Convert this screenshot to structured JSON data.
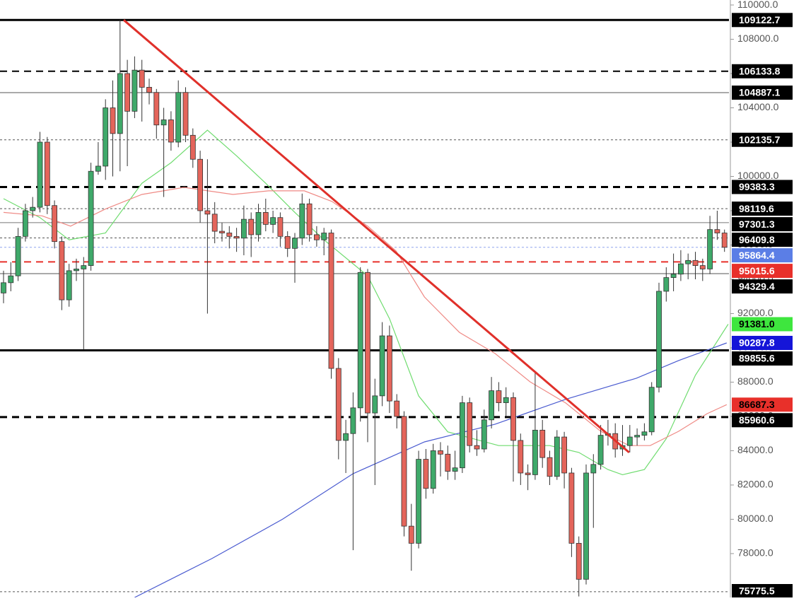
{
  "chart_data": {
    "type": "candlestick",
    "ylim": [
      75440,
      110290
    ],
    "yticks": [
      {
        "value": 78000,
        "label": "78000.0"
      },
      {
        "value": 80000,
        "label": "80000.0"
      },
      {
        "value": 82000,
        "label": "82000.0"
      },
      {
        "value": 84000,
        "label": "84000.0"
      },
      {
        "value": 86000,
        "label": "86000.0"
      },
      {
        "value": 88000,
        "label": "88000.0"
      },
      {
        "value": 90000,
        "label": "90000.0"
      },
      {
        "value": 92000,
        "label": "92000.0"
      },
      {
        "value": 94000,
        "label": "94000.0"
      },
      {
        "value": 96000,
        "label": "96000.0"
      },
      {
        "value": 98000,
        "label": "98000.0"
      },
      {
        "value": 100000,
        "label": "100000.0"
      },
      {
        "value": 102000,
        "label": "102000.0"
      },
      {
        "value": 104000,
        "label": "104000.0"
      },
      {
        "value": 106000,
        "label": "106000.0"
      },
      {
        "value": 108000,
        "label": "108000.0"
      },
      {
        "value": 110000,
        "label": "110000.0"
      }
    ],
    "up_color": "#3fa96a",
    "down_color": "#e4655b",
    "open": [
      93200,
      93800,
      94200,
      96500,
      98000,
      98200,
      102000,
      98300,
      96200,
      92800,
      94500,
      94600,
      94800,
      100300,
      100600,
      104000,
      102500,
      106000,
      103800,
      106200,
      105200,
      104900,
      103000,
      103300,
      102000,
      104900,
      102400,
      101000,
      98000,
      97800,
      96800,
      96700,
      96500,
      96400,
      97500,
      96600,
      97900,
      97200,
      97600,
      96500,
      95800,
      96400,
      98400,
      96600,
      96300,
      96700,
      88800,
      84600,
      85000,
      86500,
      94400,
      86200,
      87200,
      90700,
      86900,
      86000,
      79600,
      78600,
      83500,
      81800,
      84000,
      83800,
      82800,
      83000,
      86800,
      84300,
      84100,
      85800,
      87500,
      86800,
      87100,
      84600,
      82700,
      82600,
      85200,
      83600,
      82500,
      84800,
      82700,
      78600,
      76500,
      82700,
      83200,
      84900,
      85000,
      84100,
      84300,
      84800,
      84900,
      85100,
      87700,
      93300,
      94100,
      94300,
      94900,
      95100,
      94800,
      94600,
      96900,
      96700
    ],
    "high": [
      94500,
      95000,
      97000,
      98400,
      98800,
      102600,
      102300,
      98600,
      96500,
      94900,
      95200,
      95300,
      100800,
      102000,
      104500,
      105600,
      109122.7,
      106800,
      107000,
      106800,
      105700,
      105100,
      104000,
      103800,
      105600,
      105200,
      102800,
      101500,
      101000,
      98500,
      97300,
      97100,
      97000,
      98300,
      97900,
      98400,
      98700,
      98000,
      97900,
      96800,
      96700,
      99000,
      98700,
      97100,
      97000,
      96900,
      89400,
      85800,
      87400,
      94700,
      94600,
      88200,
      91500,
      91300,
      87300,
      86300,
      80900,
      84000,
      84100,
      84400,
      84500,
      84300,
      84000,
      87200,
      87100,
      85200,
      86400,
      88300,
      88000,
      87700,
      87400,
      85000,
      83200,
      88600,
      85800,
      84000,
      85200,
      85100,
      83000,
      79000,
      83200,
      83800,
      85500,
      85800,
      85600,
      85500,
      85500,
      85300,
      85600,
      88000,
      93800,
      94700,
      95500,
      95700,
      95500,
      95600,
      95200,
      97700,
      98000,
      96900
    ],
    "low": [
      92600,
      93300,
      93900,
      96200,
      97600,
      97900,
      97800,
      95800,
      92200,
      92400,
      93900,
      89900,
      94500,
      100100,
      99800,
      100000,
      100300,
      100600,
      103400,
      103200,
      104200,
      102200,
      98800,
      101500,
      101700,
      102000,
      100500,
      97300,
      92000,
      96100,
      96200,
      95800,
      95600,
      95400,
      95300,
      96200,
      96800,
      96700,
      95900,
      95300,
      93800,
      96000,
      96200,
      95900,
      95400,
      88200,
      83500,
      82700,
      78200,
      85700,
      84500,
      82000,
      86600,
      86200,
      85300,
      79000,
      77000,
      78300,
      81200,
      81500,
      82500,
      82300,
      82300,
      82700,
      83900,
      83700,
      83900,
      85300,
      86300,
      86000,
      82200,
      82000,
      81700,
      82300,
      83000,
      82000,
      82300,
      81800,
      77800,
      75500,
      76200,
      79500,
      82900,
      84300,
      83600,
      83700,
      83900,
      84300,
      84600,
      84900,
      87400,
      92700,
      93300,
      93900,
      94000,
      94000,
      93900,
      94300,
      96300,
      95600
    ],
    "close": [
      93800,
      94200,
      96500,
      98000,
      98200,
      102000,
      98300,
      96200,
      92800,
      94500,
      94600,
      94800,
      100300,
      100600,
      104000,
      102500,
      106000,
      103800,
      106200,
      105200,
      104900,
      103000,
      103300,
      102000,
      104900,
      102400,
      101000,
      98000,
      97800,
      96800,
      96700,
      96500,
      96400,
      97500,
      96600,
      97900,
      97200,
      97600,
      96500,
      95800,
      96400,
      98400,
      96600,
      96300,
      96700,
      88800,
      84600,
      85000,
      86500,
      94400,
      86200,
      87200,
      90700,
      86900,
      86000,
      79600,
      78600,
      83500,
      81800,
      84000,
      83800,
      82800,
      83000,
      86800,
      84300,
      84100,
      85800,
      87500,
      86800,
      87100,
      84600,
      82700,
      82600,
      85200,
      83600,
      82500,
      84800,
      82700,
      78600,
      76500,
      82700,
      83200,
      84900,
      85000,
      84100,
      84300,
      84800,
      84900,
      85100,
      87700,
      93300,
      94100,
      94300,
      94900,
      95100,
      94800,
      94600,
      96900,
      96700,
      95864.4
    ],
    "lines": [
      {
        "color": "#6fdc6f",
        "x": [
          0,
          5,
          9,
          14,
          19,
          23,
          28,
          32,
          36,
          40,
          44,
          50,
          53,
          57,
          61,
          68,
          75,
          79,
          83,
          85,
          88,
          91,
          95,
          99.5
        ],
        "values": [
          98700,
          97600,
          96300,
          96700,
          99600,
          100800,
          102700,
          101200,
          99600,
          97900,
          96300,
          94200,
          91700,
          87200,
          85100,
          84300,
          84300,
          83900,
          82900,
          82600,
          82900,
          84700,
          88400,
          91381
        ]
      },
      {
        "color": "#ef8a85",
        "x": [
          0,
          5.3,
          9.2,
          14,
          19,
          24.8,
          31.5,
          36.4,
          41.3,
          45.1,
          50,
          53.9,
          57.8,
          62.6,
          67.5,
          72.3,
          77.2,
          82,
          85.9,
          88.8,
          92.7,
          96.6,
          99.3
        ],
        "values": [
          97900,
          97700,
          97100,
          98100,
          98950,
          99360,
          98950,
          99160,
          99160,
          98540,
          97100,
          95650,
          92970,
          90900,
          89670,
          88020,
          86780,
          85130,
          84300,
          84300,
          85130,
          86160,
          86687.3
        ]
      },
      {
        "color": "#4a5bd0",
        "x": [
          18,
          28.6,
          38.3,
          48,
          57.8,
          67.5,
          77.2,
          86.9,
          92.7,
          99.3
        ],
        "values": [
          75440,
          77710,
          80000,
          82660,
          84515,
          85550,
          87000,
          88230,
          89260,
          90287.8
        ]
      }
    ],
    "trendline": {
      "color": "#e0302a",
      "x": [
        16.5,
        85.9
      ],
      "values": [
        109122.7,
        83900
      ]
    },
    "levels": [
      {
        "value": 109122.7,
        "style": "solid",
        "weight": "heavy",
        "color": "#000000",
        "label_bg": "#000000",
        "label_color": "#ffffff"
      },
      {
        "value": 106133.8,
        "style": "dashed",
        "weight": "medium",
        "color": "#000000",
        "label_bg": "#000000",
        "label_color": "#ffffff"
      },
      {
        "value": 104887.1,
        "style": "solid",
        "weight": "light",
        "color": "#555555",
        "label_bg": "#000000",
        "label_color": "#ffffff"
      },
      {
        "value": 102135.7,
        "style": "dotted",
        "weight": "light",
        "color": "#555555",
        "label_bg": "#000000",
        "label_color": "#ffffff"
      },
      {
        "value": 99383.3,
        "style": "dashed",
        "weight": "heavy",
        "color": "#000000",
        "label_bg": "#000000",
        "label_color": "#ffffff"
      },
      {
        "value": 98119.6,
        "style": "dotted",
        "weight": "light",
        "color": "#555555",
        "label_bg": "#000000",
        "label_color": "#ffffff"
      },
      {
        "value": 97301.3,
        "style": "solid",
        "weight": "light",
        "color": "#777777",
        "label_bg": "#000000",
        "label_color": "#ffffff"
      },
      {
        "value": 96409.8,
        "style": "dotted",
        "weight": "light",
        "color": "#555555",
        "label_bg": "#000000",
        "label_color": "#ffffff"
      },
      {
        "value": 95864.4,
        "style": "dotted",
        "weight": "light",
        "color": "#8fa6ee",
        "label_bg": "#5b7ee6",
        "label_color": "#ffffff"
      },
      {
        "value": 95015.6,
        "style": "dashed",
        "weight": "medium",
        "color": "#e8302a",
        "label_bg": "#e8302a",
        "label_color": "#ffffff"
      },
      {
        "value": 94329.4,
        "style": "solid",
        "weight": "light",
        "color": "#555555",
        "label_bg": "#000000",
        "label_color": "#ffffff"
      },
      {
        "value": 91381,
        "label": "91381.0",
        "style": "none",
        "color": "#3ee63e",
        "label_bg": "#3ee63e",
        "label_color": "#000000"
      },
      {
        "value": 90287.8,
        "style": "none",
        "color": "#1515d8",
        "label_bg": "#1515d8",
        "label_color": "#ffffff"
      },
      {
        "value": 89855.6,
        "style": "solid",
        "weight": "heavy",
        "color": "#000000",
        "label_bg": "#000000",
        "label_color": "#ffffff"
      },
      {
        "value": 86687.3,
        "style": "none",
        "color": "#e8302a",
        "label_bg": "#e8302a",
        "label_color": "#000000"
      },
      {
        "value": 85960.6,
        "style": "dashed",
        "weight": "heavy",
        "color": "#000000",
        "label_bg": "#000000",
        "label_color": "#ffffff"
      },
      {
        "value": 75775.5,
        "style": "dotted",
        "weight": "light",
        "color": "#555555",
        "label_bg": "#000000",
        "label_color": "#ffffff"
      }
    ]
  }
}
